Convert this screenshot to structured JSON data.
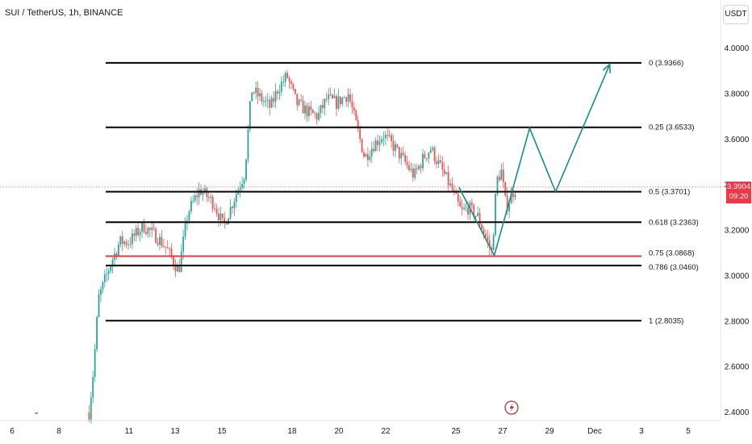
{
  "header": {
    "symbol_title": "SUI / TetherUS, 1h, BINANCE",
    "currency_button": "USDT"
  },
  "price_tag": {
    "price": "3.3904",
    "countdown": "09:20"
  },
  "colors": {
    "up": "#26a69a",
    "down": "#ef5350",
    "fib_line": "#000000",
    "fib_highlight": "#f23645",
    "projection": "#138f88",
    "current_price": "#f23645"
  },
  "chart_data": {
    "type": "line",
    "x_tick_labels": [
      "6",
      "8",
      "11",
      "13",
      "15",
      "18",
      "20",
      "22",
      "25",
      "27",
      "29",
      "Dec",
      "3",
      "5"
    ],
    "y_ticks": [
      "4.0000",
      "3.8000",
      "3.6000",
      "3.4000",
      "3.2000",
      "3.0000",
      "2.8000",
      "2.6000",
      "2.4000"
    ],
    "ylim": [
      2.38,
      4.18
    ],
    "current_price": 3.3904,
    "fib_levels": [
      {
        "label": "0 (3.9366)",
        "value": 3.9366,
        "highlight": false
      },
      {
        "label": "0.25 (3.6533)",
        "value": 3.6533,
        "highlight": false
      },
      {
        "label": "0.5 (3.3701)",
        "value": 3.3701,
        "highlight": false
      },
      {
        "label": "0.618 (3.2363)",
        "value": 3.2363,
        "highlight": false
      },
      {
        "label": "0.75 (3.0868)",
        "value": 3.0868,
        "highlight": true
      },
      {
        "label": "0.786 (3.0460)",
        "value": 3.046,
        "highlight": false
      },
      {
        "label": "1 (2.8035)",
        "value": 2.8035,
        "highlight": false
      }
    ],
    "price_path": [
      {
        "x": 9.3,
        "y": 2.4
      },
      {
        "x": 9.5,
        "y": 2.6
      },
      {
        "x": 9.7,
        "y": 2.9
      },
      {
        "x": 10.2,
        "y": 3.05
      },
      {
        "x": 10.6,
        "y": 3.15
      },
      {
        "x": 11.0,
        "y": 3.15
      },
      {
        "x": 11.6,
        "y": 3.22
      },
      {
        "x": 12.2,
        "y": 3.17
      },
      {
        "x": 12.6,
        "y": 3.12
      },
      {
        "x": 13.1,
        "y": 3.02
      },
      {
        "x": 13.5,
        "y": 3.28
      },
      {
        "x": 14.0,
        "y": 3.38
      },
      {
        "x": 14.6,
        "y": 3.32
      },
      {
        "x": 15.0,
        "y": 3.22
      },
      {
        "x": 15.5,
        "y": 3.35
      },
      {
        "x": 15.9,
        "y": 3.45
      },
      {
        "x": 16.2,
        "y": 3.82
      },
      {
        "x": 16.6,
        "y": 3.78
      },
      {
        "x": 17.0,
        "y": 3.74
      },
      {
        "x": 17.3,
        "y": 3.82
      },
      {
        "x": 17.7,
        "y": 3.88
      },
      {
        "x": 18.1,
        "y": 3.76
      },
      {
        "x": 18.6,
        "y": 3.72
      },
      {
        "x": 19.0,
        "y": 3.7
      },
      {
        "x": 19.4,
        "y": 3.78
      },
      {
        "x": 19.8,
        "y": 3.76
      },
      {
        "x": 20.3,
        "y": 3.8
      },
      {
        "x": 20.7,
        "y": 3.64
      },
      {
        "x": 21.0,
        "y": 3.52
      },
      {
        "x": 21.4,
        "y": 3.58
      },
      {
        "x": 21.8,
        "y": 3.62
      },
      {
        "x": 22.3,
        "y": 3.56
      },
      {
        "x": 22.7,
        "y": 3.5
      },
      {
        "x": 23.1,
        "y": 3.44
      },
      {
        "x": 23.5,
        "y": 3.52
      },
      {
        "x": 23.8,
        "y": 3.56
      },
      {
        "x": 24.3,
        "y": 3.46
      },
      {
        "x": 24.7,
        "y": 3.38
      },
      {
        "x": 25.1,
        "y": 3.28
      },
      {
        "x": 25.4,
        "y": 3.3
      },
      {
        "x": 25.8,
        "y": 3.26
      },
      {
        "x": 26.1,
        "y": 3.18
      },
      {
        "x": 26.4,
        "y": 3.1
      },
      {
        "x": 26.6,
        "y": 3.42
      },
      {
        "x": 26.8,
        "y": 3.46
      },
      {
        "x": 27.0,
        "y": 3.3
      },
      {
        "x": 27.3,
        "y": 3.37
      },
      {
        "x": 27.45,
        "y": 3.39
      }
    ],
    "projection_path": [
      {
        "x": 25.0,
        "y": 3.39
      },
      {
        "x": 26.5,
        "y": 3.09
      },
      {
        "x": 28.0,
        "y": 3.65
      },
      {
        "x": 29.1,
        "y": 3.37
      },
      {
        "x": 31.4,
        "y": 3.93
      }
    ],
    "annotations": [
      "lightning-marker-icon"
    ]
  }
}
